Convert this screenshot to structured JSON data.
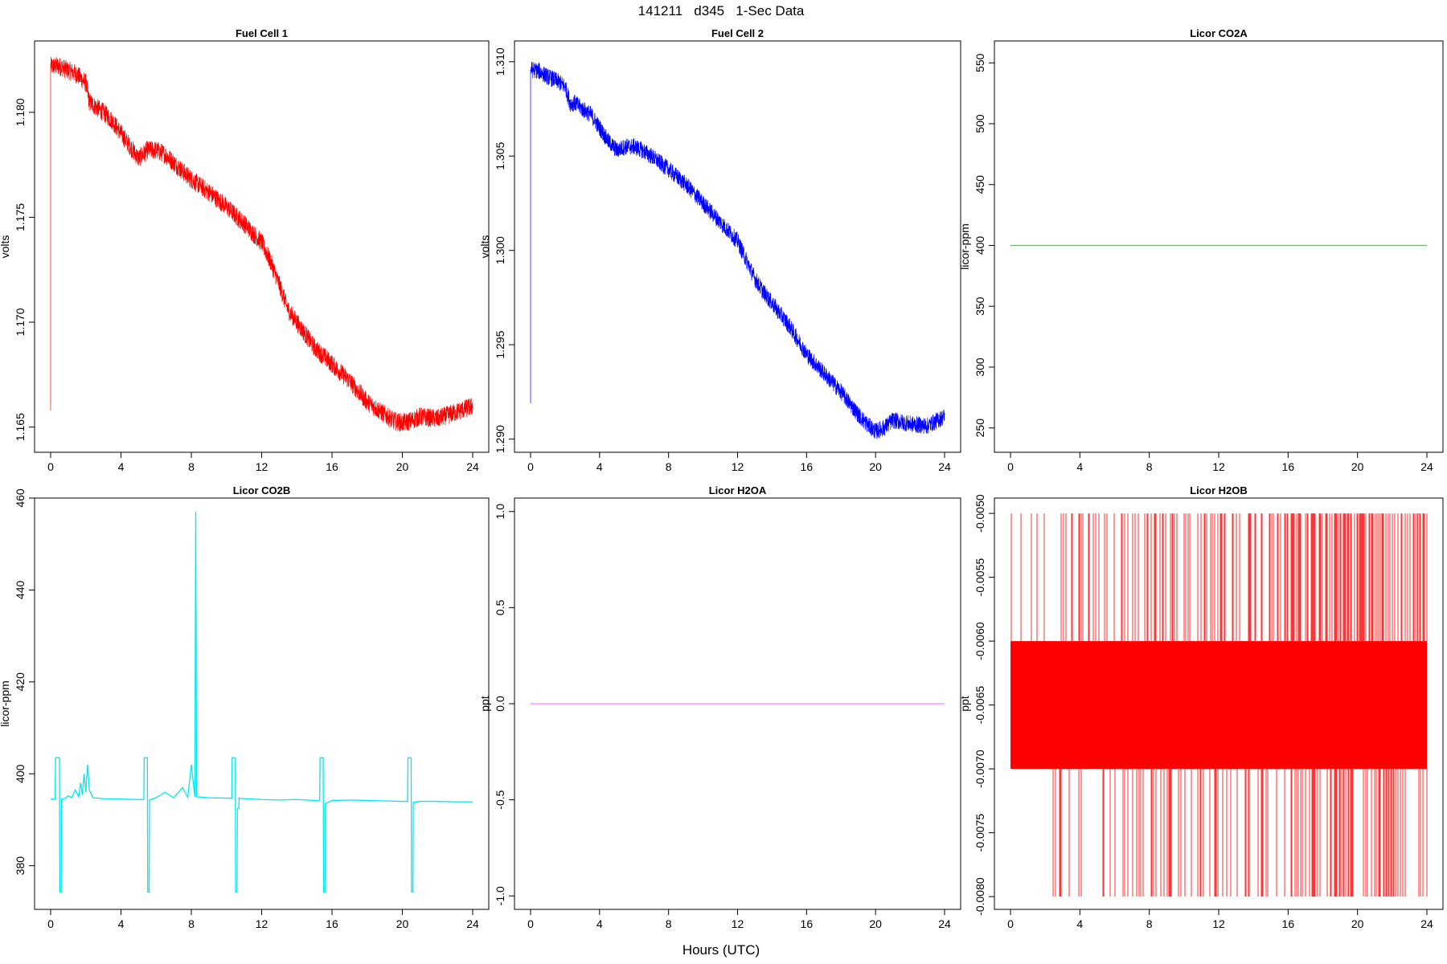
{
  "figure": {
    "title": "141211   d345   1-Sec Data",
    "xlabel": "Hours (UTC)"
  },
  "chart_data": [
    {
      "type": "line",
      "title": "Fuel Cell 1",
      "ylabel": "volts",
      "xlim": [
        0,
        24
      ],
      "ylim": [
        1.1638,
        1.1834
      ],
      "x_ticks": [
        0,
        4,
        8,
        12,
        16,
        20,
        24
      ],
      "y_ticks": [
        1.165,
        1.17,
        1.175,
        1.18
      ],
      "y_tick_labels": [
        "1.165",
        "1.170",
        "1.175",
        "1.180"
      ],
      "color": "#ff0000",
      "noise": 0.00045,
      "start_spike": 1.1658,
      "x": [
        0,
        0.5,
        1,
        1.5,
        2,
        2.2,
        2.5,
        3,
        3.5,
        4,
        4.5,
        5,
        5.5,
        6,
        6.5,
        7,
        7.5,
        8,
        9,
        10,
        11,
        12,
        12.5,
        13,
        13.5,
        14,
        15,
        16,
        17,
        18,
        19,
        19.5,
        20,
        20.5,
        21,
        22,
        23,
        24
      ],
      "y": [
        1.1822,
        1.1822,
        1.182,
        1.1818,
        1.1814,
        1.1805,
        1.1803,
        1.18,
        1.1796,
        1.179,
        1.1784,
        1.1778,
        1.1782,
        1.1782,
        1.178,
        1.1776,
        1.1772,
        1.1768,
        1.1762,
        1.1755,
        1.1747,
        1.1738,
        1.1729,
        1.1718,
        1.1706,
        1.17,
        1.1688,
        1.168,
        1.1672,
        1.1662,
        1.1656,
        1.1653,
        1.1652,
        1.1653,
        1.1655,
        1.1654,
        1.1657,
        1.166
      ]
    },
    {
      "type": "line",
      "title": "Fuel Cell 2",
      "ylabel": "volts",
      "xlim": [
        0,
        24
      ],
      "ylim": [
        1.2893,
        1.3111
      ],
      "x_ticks": [
        0,
        4,
        8,
        12,
        16,
        20,
        24
      ],
      "y_ticks": [
        1.29,
        1.295,
        1.3,
        1.305,
        1.31
      ],
      "y_tick_labels": [
        "1.290",
        "1.295",
        "1.300",
        "1.305",
        "1.310"
      ],
      "color": "#0000ff",
      "noise": 0.00045,
      "start_spike": 1.2919,
      "x": [
        0,
        0.5,
        1,
        1.5,
        2,
        2.3,
        2.6,
        3,
        3.5,
        4,
        4.5,
        5,
        5.5,
        6,
        6.5,
        7,
        8,
        9,
        10,
        11,
        12,
        12.5,
        13,
        13.5,
        14,
        15,
        16,
        17,
        18,
        19,
        19.5,
        20,
        20.5,
        21,
        22,
        23,
        24
      ],
      "y": [
        1.3096,
        1.3095,
        1.3092,
        1.309,
        1.3087,
        1.3078,
        1.3078,
        1.3075,
        1.3072,
        1.3065,
        1.3058,
        1.3053,
        1.3055,
        1.3055,
        1.3053,
        1.305,
        1.3043,
        1.3035,
        1.3025,
        1.3015,
        1.3005,
        1.2995,
        1.2985,
        1.2978,
        1.2972,
        1.296,
        1.2945,
        1.2935,
        1.2925,
        1.2913,
        1.2908,
        1.2904,
        1.2906,
        1.291,
        1.2908,
        1.2907,
        1.2912
      ]
    },
    {
      "type": "line",
      "title": "Licor CO2A",
      "ylabel": "licor-ppm",
      "xlim": [
        0,
        24
      ],
      "ylim": [
        230,
        568
      ],
      "x_ticks": [
        0,
        4,
        8,
        12,
        16,
        20,
        24
      ],
      "y_ticks": [
        250,
        300,
        350,
        400,
        450,
        500,
        550
      ],
      "y_tick_labels": [
        "250",
        "300",
        "350",
        "400",
        "450",
        "500",
        "550"
      ],
      "color": "#00ff00",
      "x": [
        0,
        24
      ],
      "y": [
        400,
        400
      ]
    },
    {
      "type": "line",
      "title": "Licor CO2B",
      "ylabel": "licor-ppm",
      "xlim": [
        0,
        24
      ],
      "ylim": [
        370.5,
        460
      ],
      "x_ticks": [
        0,
        4,
        8,
        12,
        16,
        20,
        24
      ],
      "y_ticks": [
        380,
        400,
        420,
        440,
        460
      ],
      "y_tick_labels": [
        "380",
        "400",
        "420",
        "440",
        "460"
      ],
      "color": "#00e8ee",
      "x": [
        0,
        0.25,
        0.28,
        0.5,
        0.52,
        0.6,
        0.62,
        0.8,
        1.0,
        1.2,
        1.4,
        1.6,
        1.7,
        1.8,
        1.9,
        2.0,
        2.1,
        2.2,
        2.4,
        3,
        4,
        5,
        5.3,
        5.32,
        5.5,
        5.52,
        5.6,
        5.62,
        6,
        6.5,
        7,
        7.5,
        7.8,
        8.0,
        8.2,
        8.25,
        8.3,
        9,
        10,
        10.3,
        10.32,
        10.5,
        10.52,
        10.6,
        10.62,
        10.7,
        10.72,
        11,
        12,
        13,
        14,
        15,
        15.3,
        15.32,
        15.5,
        15.52,
        15.6,
        15.62,
        16,
        17,
        18,
        19,
        20,
        20.3,
        20.32,
        20.5,
        20.52,
        20.6,
        20.62,
        21,
        22,
        23,
        24
      ],
      "y": [
        394.5,
        394.5,
        403.5,
        403.5,
        374.3,
        374.3,
        394.5,
        394.6,
        395.2,
        394.8,
        396.5,
        395.0,
        398.0,
        395.5,
        400.0,
        396.0,
        402.0,
        396.5,
        394.8,
        394.6,
        394.5,
        394.4,
        394.4,
        403.5,
        403.5,
        374.3,
        374.3,
        394.3,
        394.8,
        396.0,
        394.8,
        397.0,
        394.9,
        402.0,
        395.0,
        457.0,
        395.0,
        394.8,
        394.7,
        394.7,
        403.5,
        403.5,
        374.3,
        374.3,
        392.5,
        392.5,
        394.7,
        394.6,
        394.4,
        394.3,
        394.4,
        394.2,
        394.2,
        403.5,
        403.5,
        374.3,
        374.3,
        393.5,
        394.2,
        394.3,
        394.2,
        394.1,
        394.0,
        394.0,
        403.5,
        403.5,
        374.3,
        374.3,
        393.8,
        394.0,
        394.0,
        393.9,
        393.9
      ]
    },
    {
      "type": "line",
      "title": "Licor H2OA",
      "ylabel": "ppt",
      "xlim": [
        0,
        24
      ],
      "ylim": [
        -1.07,
        1.07
      ],
      "x_ticks": [
        0,
        4,
        8,
        12,
        16,
        20,
        24
      ],
      "y_ticks": [
        -1.0,
        -0.5,
        0.0,
        0.5,
        1.0
      ],
      "y_tick_labels": [
        "-1.0",
        "-0.5",
        "0.0",
        "0.5",
        "1.0"
      ],
      "color": "#ff80ff",
      "x": [
        0,
        24
      ],
      "y": [
        0,
        0
      ]
    },
    {
      "type": "line",
      "title": "Licor H2OB",
      "ylabel": "ppt",
      "xlim": [
        0,
        24
      ],
      "ylim": [
        -0.0081,
        -0.00488
      ],
      "x_ticks": [
        0,
        4,
        8,
        12,
        16,
        20,
        24
      ],
      "y_ticks": [
        -0.008,
        -0.0075,
        -0.007,
        -0.0065,
        -0.006,
        -0.0055,
        -0.005
      ],
      "y_tick_labels": [
        "-0.0080",
        "-0.0075",
        "-0.0070",
        "-0.0065",
        "-0.0060",
        "-0.0055",
        "-0.0050"
      ],
      "color": "#ff0000",
      "band": [
        -0.007,
        -0.006
      ],
      "levels": [
        -0.008,
        -0.007,
        -0.006,
        -0.005
      ]
    }
  ]
}
